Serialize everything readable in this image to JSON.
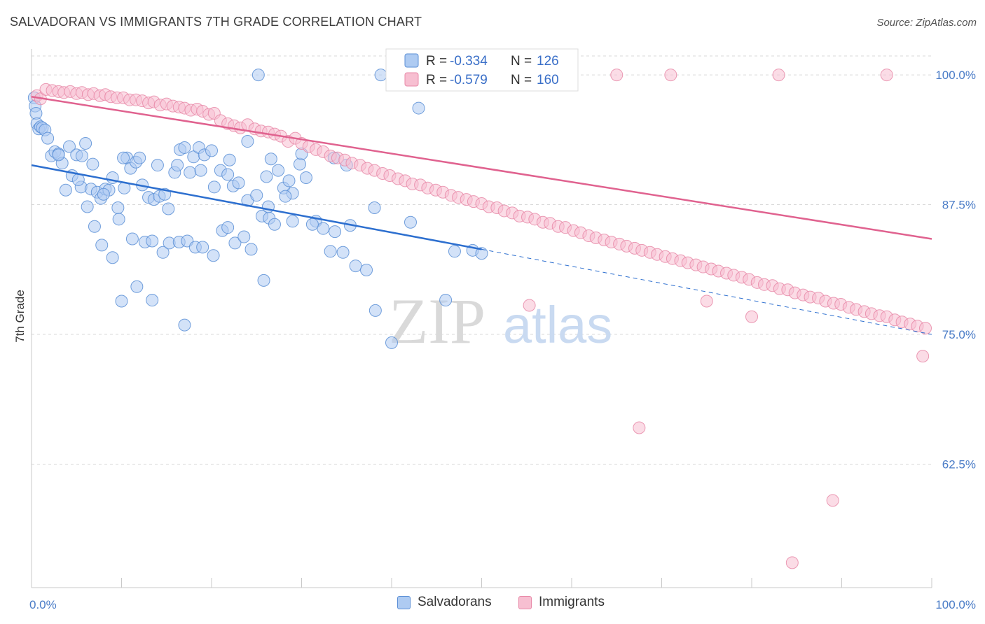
{
  "title": "SALVADORAN VS IMMIGRANTS 7TH GRADE CORRELATION CHART",
  "source": "Source: ZipAtlas.com",
  "watermark": {
    "zip": "ZIP",
    "atlas": "atlas"
  },
  "legend_stats": {
    "r_label": "R =",
    "n_label": "N =",
    "salvadorans": {
      "r": "-0.334",
      "n": "126"
    },
    "immigrants": {
      "r": "-0.579",
      "n": "160"
    }
  },
  "colors": {
    "salvadorans_fill": "#aecbf2",
    "salvadorans_stroke": "#5b8fd6",
    "salvadorans_line": "#2d6fcf",
    "immigrants_fill": "#f7bfd1",
    "immigrants_stroke": "#e889a8",
    "immigrants_line": "#e0628f",
    "grid": "#d9d9d9",
    "tick_label": "#4a7cc7"
  },
  "chart_data": {
    "type": "scatter",
    "title": "SALVADORAN VS IMMIGRANTS 7TH GRADE CORRELATION CHART",
    "xlabel": "",
    "ylabel": "7th Grade",
    "xlim": [
      0,
      100
    ],
    "ylim": [
      50.6,
      102.5
    ],
    "x_tick_labels": [
      "0.0%",
      "100.0%"
    ],
    "y_ticks": [
      62.5,
      75.0,
      87.5,
      100.0
    ],
    "y_tick_labels": [
      "62.5%",
      "75.0%",
      "87.5%",
      "100.0%"
    ],
    "grid": "horizontal dashed",
    "legend_position": "top-center",
    "series": [
      {
        "name": "Salvadorans",
        "trend": {
          "x": [
            0,
            50
          ],
          "y": [
            91.3,
            83.2
          ],
          "dashed_to": {
            "x": 100,
            "y": 75.0
          }
        },
        "points": [
          [
            0.3,
            97.8
          ],
          [
            0.4,
            97.0
          ],
          [
            0.5,
            96.3
          ],
          [
            0.6,
            95.3
          ],
          [
            0.8,
            94.8
          ],
          [
            1.0,
            95.0
          ],
          [
            1.2,
            94.9
          ],
          [
            1.5,
            94.7
          ],
          [
            1.8,
            93.9
          ],
          [
            2.2,
            92.2
          ],
          [
            2.6,
            92.6
          ],
          [
            3.0,
            92.4
          ],
          [
            3.4,
            91.5
          ],
          [
            4.2,
            93.1
          ],
          [
            5.0,
            92.3
          ],
          [
            5.6,
            92.2
          ],
          [
            6.0,
            93.4
          ],
          [
            6.8,
            91.4
          ],
          [
            3.8,
            88.9
          ],
          [
            4.5,
            90.3
          ],
          [
            5.5,
            89.2
          ],
          [
            6.2,
            87.3
          ],
          [
            6.6,
            89.0
          ],
          [
            7.3,
            88.7
          ],
          [
            7.7,
            88.1
          ],
          [
            8.2,
            89.0
          ],
          [
            8.6,
            88.9
          ],
          [
            9.0,
            90.1
          ],
          [
            9.6,
            87.2
          ],
          [
            10.3,
            89.1
          ],
          [
            10.6,
            92.0
          ],
          [
            11.0,
            91.0
          ],
          [
            11.6,
            91.6
          ],
          [
            12.0,
            92.0
          ],
          [
            12.3,
            89.4
          ],
          [
            13.0,
            88.2
          ],
          [
            13.6,
            88.0
          ],
          [
            14.2,
            88.3
          ],
          [
            14.8,
            88.5
          ],
          [
            15.2,
            87.1
          ],
          [
            15.9,
            90.6
          ],
          [
            16.5,
            92.8
          ],
          [
            17.0,
            93.0
          ],
          [
            17.6,
            90.6
          ],
          [
            18.0,
            92.1
          ],
          [
            18.6,
            93.0
          ],
          [
            19.2,
            92.3
          ],
          [
            20.3,
            89.2
          ],
          [
            21.0,
            90.8
          ],
          [
            21.8,
            90.4
          ],
          [
            22.4,
            89.3
          ],
          [
            23.0,
            89.6
          ],
          [
            24.0,
            87.9
          ],
          [
            25.0,
            88.4
          ],
          [
            25.6,
            86.4
          ],
          [
            26.4,
            86.2
          ],
          [
            27.4,
            90.8
          ],
          [
            28.0,
            89.1
          ],
          [
            28.6,
            89.8
          ],
          [
            29.0,
            88.6
          ],
          [
            29.8,
            91.4
          ],
          [
            30.5,
            90.1
          ],
          [
            31.6,
            85.9
          ],
          [
            32.4,
            85.2
          ],
          [
            33.2,
            83.0
          ],
          [
            33.7,
            84.9
          ],
          [
            34.6,
            82.9
          ],
          [
            35.4,
            85.5
          ],
          [
            36.0,
            81.6
          ],
          [
            37.2,
            81.2
          ],
          [
            7.0,
            85.4
          ],
          [
            7.8,
            83.6
          ],
          [
            9.0,
            82.4
          ],
          [
            9.7,
            86.1
          ],
          [
            11.2,
            84.2
          ],
          [
            12.6,
            83.9
          ],
          [
            13.4,
            84.0
          ],
          [
            14.6,
            82.9
          ],
          [
            15.3,
            83.8
          ],
          [
            16.4,
            83.9
          ],
          [
            17.3,
            84.0
          ],
          [
            18.2,
            83.4
          ],
          [
            19.0,
            83.4
          ],
          [
            20.2,
            82.6
          ],
          [
            21.2,
            85.0
          ],
          [
            21.8,
            85.3
          ],
          [
            22.6,
            83.8
          ],
          [
            23.6,
            84.4
          ],
          [
            24.4,
            83.2
          ],
          [
            25.8,
            80.2
          ],
          [
            26.3,
            87.3
          ],
          [
            10.0,
            78.2
          ],
          [
            11.7,
            79.6
          ],
          [
            13.4,
            78.3
          ],
          [
            17.0,
            75.9
          ],
          [
            20.0,
            92.7
          ],
          [
            22.0,
            91.8
          ],
          [
            27.0,
            85.6
          ],
          [
            29.0,
            85.9
          ],
          [
            31.2,
            85.6
          ],
          [
            33.6,
            92.0
          ],
          [
            35.0,
            91.3
          ],
          [
            10.2,
            92.0
          ],
          [
            14.0,
            91.3
          ],
          [
            16.2,
            91.3
          ],
          [
            24.0,
            93.6
          ],
          [
            26.6,
            91.9
          ],
          [
            30.0,
            92.4
          ],
          [
            38.1,
            87.2
          ],
          [
            38.2,
            77.3
          ],
          [
            40.0,
            74.2
          ],
          [
            42.1,
            85.8
          ],
          [
            46.0,
            78.3
          ],
          [
            47.0,
            83.0
          ],
          [
            49.0,
            83.1
          ],
          [
            50.0,
            82.8
          ],
          [
            25.2,
            100.0
          ],
          [
            38.8,
            100.0
          ],
          [
            43.0,
            96.8
          ],
          [
            3.0,
            92.3
          ],
          [
            5.2,
            89.9
          ],
          [
            8.0,
            88.5
          ],
          [
            18.8,
            90.8
          ],
          [
            26.1,
            90.2
          ],
          [
            28.2,
            88.3
          ]
        ]
      },
      {
        "name": "Immigrants",
        "trend": {
          "x": [
            0,
            100
          ],
          "y": [
            97.9,
            84.2
          ]
        },
        "points": [
          [
            0.6,
            98.0
          ],
          [
            1.0,
            97.7
          ],
          [
            1.6,
            98.6
          ],
          [
            2.3,
            98.5
          ],
          [
            3.0,
            98.4
          ],
          [
            3.6,
            98.3
          ],
          [
            4.3,
            98.4
          ],
          [
            5.0,
            98.2
          ],
          [
            5.6,
            98.3
          ],
          [
            6.3,
            98.1
          ],
          [
            6.9,
            98.2
          ],
          [
            7.6,
            98.0
          ],
          [
            8.2,
            98.1
          ],
          [
            8.8,
            97.9
          ],
          [
            9.5,
            97.8
          ],
          [
            10.2,
            97.8
          ],
          [
            10.9,
            97.6
          ],
          [
            11.6,
            97.6
          ],
          [
            12.3,
            97.5
          ],
          [
            13.0,
            97.3
          ],
          [
            13.6,
            97.4
          ],
          [
            14.3,
            97.1
          ],
          [
            15.0,
            97.2
          ],
          [
            15.7,
            97.0
          ],
          [
            16.4,
            96.9
          ],
          [
            17.0,
            96.8
          ],
          [
            17.7,
            96.6
          ],
          [
            18.4,
            96.7
          ],
          [
            19.0,
            96.5
          ],
          [
            19.7,
            96.2
          ],
          [
            20.3,
            96.3
          ],
          [
            21.0,
            95.6
          ],
          [
            21.8,
            95.3
          ],
          [
            22.5,
            95.1
          ],
          [
            23.2,
            94.9
          ],
          [
            24.0,
            95.2
          ],
          [
            24.8,
            94.8
          ],
          [
            25.5,
            94.6
          ],
          [
            26.3,
            94.5
          ],
          [
            27.0,
            94.3
          ],
          [
            27.7,
            94.1
          ],
          [
            28.5,
            93.6
          ],
          [
            29.3,
            93.9
          ],
          [
            30.0,
            93.4
          ],
          [
            30.8,
            93.1
          ],
          [
            31.6,
            92.8
          ],
          [
            32.4,
            92.6
          ],
          [
            33.2,
            92.2
          ],
          [
            34.0,
            92.0
          ],
          [
            34.8,
            91.8
          ],
          [
            35.6,
            91.5
          ],
          [
            36.5,
            91.3
          ],
          [
            37.3,
            91.0
          ],
          [
            38.1,
            90.8
          ],
          [
            39.0,
            90.5
          ],
          [
            39.8,
            90.3
          ],
          [
            40.7,
            90.0
          ],
          [
            41.5,
            89.8
          ],
          [
            42.3,
            89.5
          ],
          [
            43.2,
            89.4
          ],
          [
            44.0,
            89.1
          ],
          [
            44.9,
            88.9
          ],
          [
            45.7,
            88.7
          ],
          [
            46.6,
            88.4
          ],
          [
            47.4,
            88.2
          ],
          [
            48.3,
            88.0
          ],
          [
            49.1,
            87.8
          ],
          [
            50.0,
            87.6
          ],
          [
            50.8,
            87.3
          ],
          [
            51.7,
            87.2
          ],
          [
            52.5,
            86.9
          ],
          [
            53.4,
            86.7
          ],
          [
            54.2,
            86.4
          ],
          [
            55.1,
            86.3
          ],
          [
            55.9,
            86.1
          ],
          [
            56.8,
            85.8
          ],
          [
            57.6,
            85.7
          ],
          [
            58.5,
            85.4
          ],
          [
            59.3,
            85.3
          ],
          [
            60.2,
            85.0
          ],
          [
            61.0,
            84.8
          ],
          [
            61.9,
            84.5
          ],
          [
            62.7,
            84.3
          ],
          [
            63.6,
            84.1
          ],
          [
            64.4,
            83.9
          ],
          [
            65.3,
            83.7
          ],
          [
            66.1,
            83.5
          ],
          [
            67.0,
            83.3
          ],
          [
            67.8,
            83.1
          ],
          [
            68.7,
            82.9
          ],
          [
            69.5,
            82.7
          ],
          [
            70.4,
            82.5
          ],
          [
            71.2,
            82.3
          ],
          [
            72.1,
            82.1
          ],
          [
            72.9,
            81.9
          ],
          [
            73.8,
            81.7
          ],
          [
            74.6,
            81.5
          ],
          [
            75.5,
            81.3
          ],
          [
            76.3,
            81.1
          ],
          [
            77.2,
            80.9
          ],
          [
            78.0,
            80.7
          ],
          [
            78.9,
            80.5
          ],
          [
            79.7,
            80.3
          ],
          [
            80.6,
            80.0
          ],
          [
            81.4,
            79.8
          ],
          [
            82.3,
            79.7
          ],
          [
            83.1,
            79.4
          ],
          [
            84.0,
            79.3
          ],
          [
            84.8,
            79.0
          ],
          [
            85.7,
            78.8
          ],
          [
            86.5,
            78.6
          ],
          [
            87.4,
            78.5
          ],
          [
            88.2,
            78.2
          ],
          [
            89.1,
            78.0
          ],
          [
            89.9,
            77.9
          ],
          [
            90.8,
            77.6
          ],
          [
            91.6,
            77.4
          ],
          [
            92.5,
            77.2
          ],
          [
            93.3,
            77.0
          ],
          [
            94.2,
            76.8
          ],
          [
            95.0,
            76.7
          ],
          [
            95.9,
            76.4
          ],
          [
            96.7,
            76.2
          ],
          [
            97.6,
            76.0
          ],
          [
            98.4,
            75.8
          ],
          [
            99.3,
            75.6
          ],
          [
            65.0,
            100.0
          ],
          [
            71.0,
            100.0
          ],
          [
            83.0,
            100.0
          ],
          [
            95.0,
            100.0
          ],
          [
            89.0,
            59.0
          ],
          [
            75.0,
            78.2
          ],
          [
            55.3,
            77.8
          ],
          [
            80.0,
            76.7
          ],
          [
            67.5,
            66.0
          ],
          [
            84.5,
            53.0
          ],
          [
            99.0,
            72.9
          ]
        ]
      }
    ]
  },
  "bottom_legend": {
    "salvadorans": "Salvadorans",
    "immigrants": "Immigrants"
  }
}
